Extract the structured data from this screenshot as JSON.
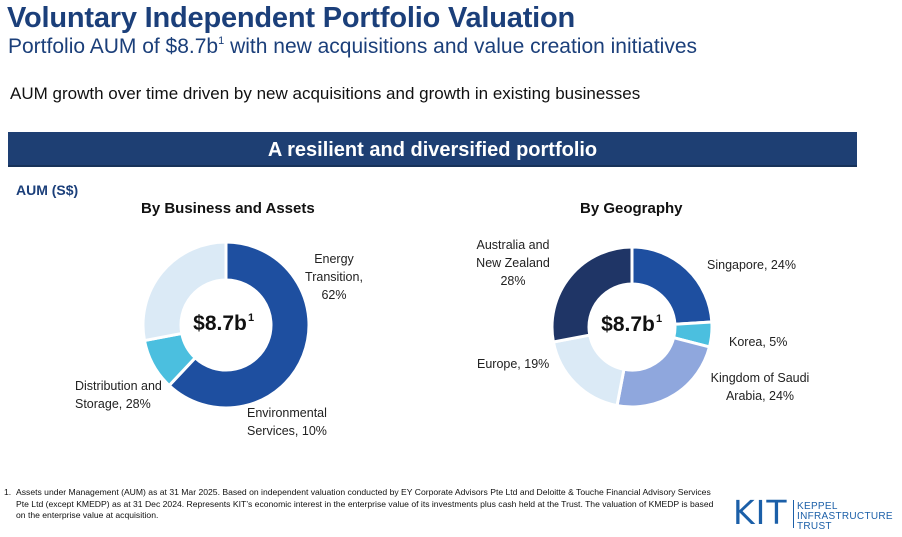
{
  "header": {
    "title": "Voluntary Independent Portfolio Valuation",
    "subtitle_main": "Portfolio AUM of $8.7b",
    "subtitle_sup": "1",
    "subtitle_rest": " with new acquisitions and value creation initiatives",
    "lead": "AUM growth over time driven by new acquisitions and growth in existing businesses"
  },
  "banner": {
    "text": "A resilient and diversified portfolio"
  },
  "aum_label": "AUM (S$)",
  "colors": {
    "navy": "#1e3f73",
    "dark_navy": "#1f3566",
    "blue": "#1e4fa0",
    "cyan": "#4bbfdf",
    "light_blue": "#dbeaf6",
    "periwinkle": "#8fa7dd"
  },
  "chart_data": [
    {
      "type": "pie",
      "title": "By Business and Assets",
      "center_label": "$8.7b",
      "center_sup": "1",
      "slices": [
        {
          "label_lines": [
            "Energy",
            "Transition,",
            "62%"
          ],
          "value": 62,
          "color": "#1e4fa0"
        },
        {
          "label_lines": [
            "Environmental",
            "Services, 10%"
          ],
          "value": 10,
          "color": "#4bbfdf"
        },
        {
          "label_lines": [
            "Distribution and",
            "Storage, 28%"
          ],
          "value": 28,
          "color": "#dbeaf6"
        }
      ]
    },
    {
      "type": "pie",
      "title": "By Geography",
      "center_label": "$8.7b",
      "center_sup": "1",
      "slices": [
        {
          "label_lines": [
            "Singapore, 24%"
          ],
          "value": 24,
          "color": "#1e4fa0"
        },
        {
          "label_lines": [
            "Korea, 5%"
          ],
          "value": 5,
          "color": "#4bbfdf"
        },
        {
          "label_lines": [
            "Kingdom of Saudi",
            "Arabia, 24%"
          ],
          "value": 24,
          "color": "#8fa7dd"
        },
        {
          "label_lines": [
            "Europe, 19%"
          ],
          "value": 19,
          "color": "#dbeaf6"
        },
        {
          "label_lines": [
            "Australia and",
            "New Zealand",
            "28%"
          ],
          "value": 28,
          "color": "#1f3566"
        }
      ]
    }
  ],
  "footnote": {
    "number": "1.",
    "text": "Assets under Management (AUM) as at 31 Mar 2025. Based on independent valuation conducted by EY Corporate Advisors Pte Ltd and Deloitte & Touche Financial Advisory Services Pte Ltd (except KMEDP) as at 31 Dec 2024. Represents KIT’s economic interest in the enterprise value of its investments plus cash held at the Trust.  The valuation of KMEDP is based on the enterprise value at acquisition."
  },
  "logo": {
    "mark": "KIT",
    "lines": [
      "KEPPEL",
      "INFRASTRUCTURE",
      "TRUST"
    ]
  }
}
